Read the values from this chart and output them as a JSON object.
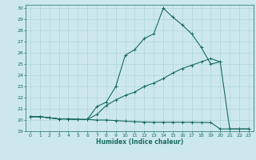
{
  "title": "",
  "xlabel": "Humidex (Indice chaleur)",
  "bg_color": "#cce8ee",
  "line_color": "#1a6b60",
  "grid_color": "#aad0d8",
  "xlim": [
    -0.5,
    23.5
  ],
  "ylim": [
    19,
    30.3
  ],
  "yticks": [
    19,
    20,
    21,
    22,
    23,
    24,
    25,
    26,
    27,
    28,
    29,
    30
  ],
  "xticks": [
    0,
    1,
    2,
    3,
    4,
    5,
    6,
    7,
    8,
    9,
    10,
    11,
    12,
    13,
    14,
    15,
    16,
    17,
    18,
    19,
    20,
    21,
    22,
    23
  ],
  "line1_x": [
    0,
    1,
    2,
    3,
    4,
    5,
    6,
    7,
    8,
    9,
    10,
    11,
    12,
    13,
    14,
    15,
    16,
    17,
    18,
    19,
    20,
    21,
    22,
    23
  ],
  "line1_y": [
    20.3,
    20.3,
    20.2,
    20.1,
    20.1,
    20.05,
    20.05,
    20.0,
    20.0,
    19.95,
    19.9,
    19.85,
    19.82,
    19.8,
    19.8,
    19.8,
    19.8,
    19.8,
    19.78,
    19.78,
    19.2,
    19.2,
    19.2,
    19.2
  ],
  "line2_x": [
    0,
    1,
    2,
    3,
    4,
    5,
    6,
    7,
    8,
    9,
    10,
    11,
    12,
    13,
    14,
    15,
    16,
    17,
    18,
    19,
    20
  ],
  "line2_y": [
    20.3,
    20.3,
    20.2,
    20.1,
    20.1,
    20.05,
    20.05,
    20.5,
    21.3,
    21.8,
    22.2,
    22.5,
    23.0,
    23.3,
    23.7,
    24.2,
    24.6,
    24.9,
    25.2,
    25.5,
    25.2
  ],
  "line3_x": [
    0,
    1,
    2,
    3,
    4,
    5,
    6,
    7,
    8,
    9,
    10,
    11,
    12,
    13,
    14,
    15,
    16,
    17,
    18,
    19,
    20,
    21,
    22,
    23
  ],
  "line3_y": [
    20.3,
    20.3,
    20.2,
    20.1,
    20.1,
    20.05,
    20.05,
    21.2,
    21.6,
    23.0,
    25.8,
    26.3,
    27.3,
    27.7,
    30.0,
    29.2,
    28.5,
    27.7,
    26.5,
    25.0,
    25.2,
    19.2,
    19.2,
    19.2
  ]
}
